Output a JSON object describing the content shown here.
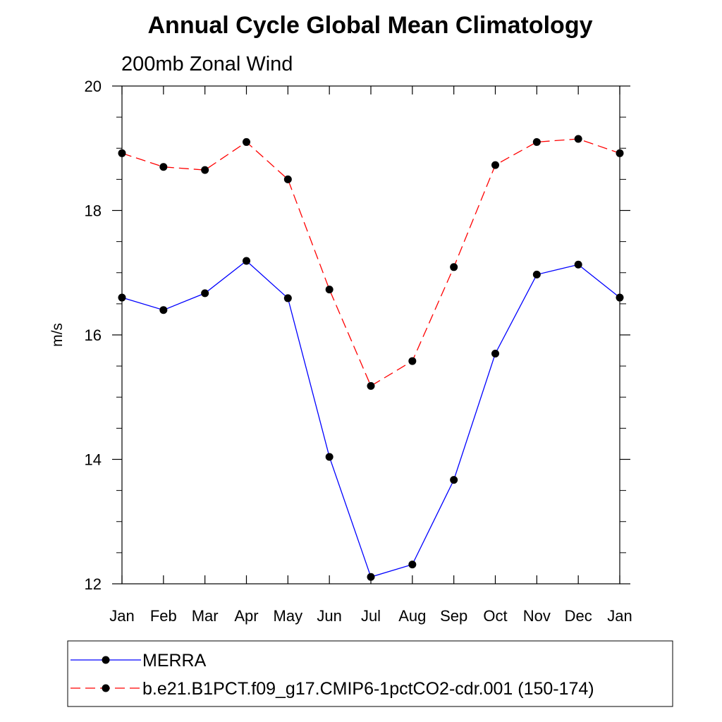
{
  "chart_data": {
    "type": "line",
    "title": "Annual Cycle Global Mean Climatology",
    "subtitle": "200mb Zonal Wind",
    "xlabel": "",
    "ylabel": "m/s",
    "ylim": [
      12,
      20
    ],
    "yticks": [
      12,
      14,
      16,
      18,
      20
    ],
    "categories": [
      "Jan",
      "Feb",
      "Mar",
      "Apr",
      "May",
      "Jun",
      "Jul",
      "Aug",
      "Sep",
      "Oct",
      "Nov",
      "Dec",
      "Jan"
    ],
    "series": [
      {
        "name": "MERRA",
        "color": "#0000ff",
        "style": "solid",
        "values": [
          16.6,
          16.4,
          16.67,
          17.19,
          16.59,
          14.04,
          12.11,
          12.31,
          13.67,
          15.7,
          16.97,
          17.13,
          16.6
        ]
      },
      {
        "name": "b.e21.B1PCT.f09_g17.CMIP6-1pctCO2-cdr.001 (150-174)",
        "color": "#ff0000",
        "style": "dashed",
        "values": [
          18.92,
          18.7,
          18.65,
          19.1,
          18.5,
          16.73,
          15.18,
          15.58,
          17.09,
          18.73,
          19.1,
          19.15,
          18.92
        ]
      }
    ],
    "legend_position": "bottom"
  }
}
